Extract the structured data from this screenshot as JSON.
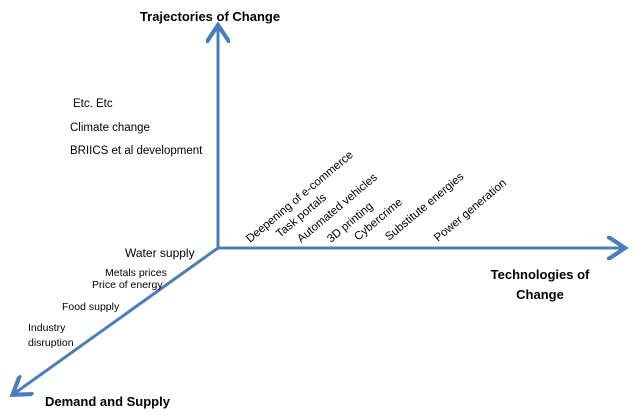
{
  "axes": {
    "vertical": "Trajectories of Change",
    "horizontal": [
      "Technologies of",
      "Change"
    ],
    "diagonal": "Demand and Supply"
  },
  "trajectories": [
    "Etc. Etc",
    "Climate change",
    "BRIICS et al development"
  ],
  "technologies": [
    "Deepening of e-commerce",
    "Task portals",
    "Automated vehicles",
    "3D printing",
    "Cybercrime",
    "Substitute energies",
    "Power generation"
  ],
  "demand_supply": [
    "Water supply",
    "Metals prices",
    "Price of energy",
    "Food supply",
    "Industry",
    "disruption"
  ]
}
